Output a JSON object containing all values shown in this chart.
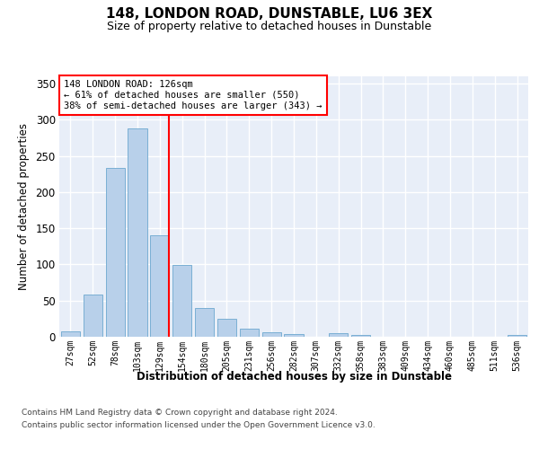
{
  "title": "148, LONDON ROAD, DUNSTABLE, LU6 3EX",
  "subtitle": "Size of property relative to detached houses in Dunstable",
  "xlabel": "Distribution of detached houses by size in Dunstable",
  "ylabel": "Number of detached properties",
  "bar_labels": [
    "27sqm",
    "52sqm",
    "78sqm",
    "103sqm",
    "129sqm",
    "154sqm",
    "180sqm",
    "205sqm",
    "231sqm",
    "256sqm",
    "282sqm",
    "307sqm",
    "332sqm",
    "358sqm",
    "383sqm",
    "409sqm",
    "434sqm",
    "460sqm",
    "485sqm",
    "511sqm",
    "536sqm"
  ],
  "bar_values": [
    8,
    58,
    234,
    288,
    140,
    99,
    40,
    25,
    11,
    6,
    4,
    0,
    5,
    3,
    0,
    0,
    0,
    0,
    0,
    0,
    2
  ],
  "bar_color": "#b8d0ea",
  "bar_edge_color": "#7aafd4",
  "vline_bar_index": 4,
  "vline_color": "red",
  "ylim_max": 360,
  "yticks": [
    0,
    50,
    100,
    150,
    200,
    250,
    300,
    350
  ],
  "annotation_text": "148 LONDON ROAD: 126sqm\n← 61% of detached houses are smaller (550)\n38% of semi-detached houses are larger (343) →",
  "bg_color": "#e8eef8",
  "grid_color": "white",
  "footer_line1": "Contains HM Land Registry data © Crown copyright and database right 2024.",
  "footer_line2": "Contains public sector information licensed under the Open Government Licence v3.0."
}
